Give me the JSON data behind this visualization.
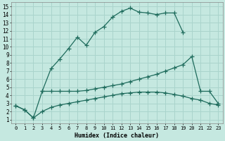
{
  "xlabel": "Humidex (Indice chaleur)",
  "bg_color": "#c5e8e0",
  "grid_color": "#aad4cc",
  "line_color": "#1e6b5c",
  "xlim": [
    -0.5,
    23.5
  ],
  "ylim": [
    0.5,
    15.5
  ],
  "xticks": [
    0,
    1,
    2,
    3,
    4,
    5,
    6,
    7,
    8,
    9,
    10,
    11,
    12,
    13,
    14,
    15,
    16,
    17,
    18,
    19,
    20,
    21,
    22,
    23
  ],
  "yticks": [
    1,
    2,
    3,
    4,
    5,
    6,
    7,
    8,
    9,
    10,
    11,
    12,
    13,
    14,
    15
  ],
  "line1_x": [
    0,
    1,
    2,
    3,
    4,
    5,
    6,
    7,
    8,
    9,
    10,
    11,
    12,
    13,
    14,
    15,
    16,
    17,
    18,
    19
  ],
  "line1_y": [
    2.7,
    2.2,
    1.2,
    4.5,
    7.3,
    8.5,
    9.8,
    11.2,
    10.2,
    11.8,
    12.5,
    13.7,
    14.4,
    14.8,
    14.3,
    14.2,
    14.0,
    14.2,
    14.2,
    11.8
  ],
  "line2_x": [
    3,
    4,
    5,
    6,
    7,
    8,
    9,
    10,
    11,
    12,
    13,
    14,
    15,
    16,
    17,
    18,
    19,
    20,
    21,
    22,
    23
  ],
  "line2_y": [
    4.5,
    4.5,
    4.5,
    4.5,
    4.5,
    4.6,
    4.8,
    5.0,
    5.2,
    5.4,
    5.7,
    6.0,
    6.3,
    6.6,
    7.0,
    7.4,
    7.8,
    8.8,
    4.5,
    4.5,
    3.0
  ],
  "line3_x": [
    0,
    1,
    2,
    3,
    4,
    5,
    6,
    7,
    8,
    9,
    10,
    11,
    12,
    13,
    14,
    15,
    16,
    17,
    18,
    19,
    20,
    21,
    22,
    23
  ],
  "line3_y": [
    2.7,
    2.2,
    1.2,
    2.0,
    2.5,
    2.8,
    3.0,
    3.2,
    3.4,
    3.6,
    3.8,
    4.0,
    4.2,
    4.3,
    4.4,
    4.4,
    4.4,
    4.3,
    4.1,
    3.9,
    3.6,
    3.4,
    3.0,
    2.8
  ]
}
